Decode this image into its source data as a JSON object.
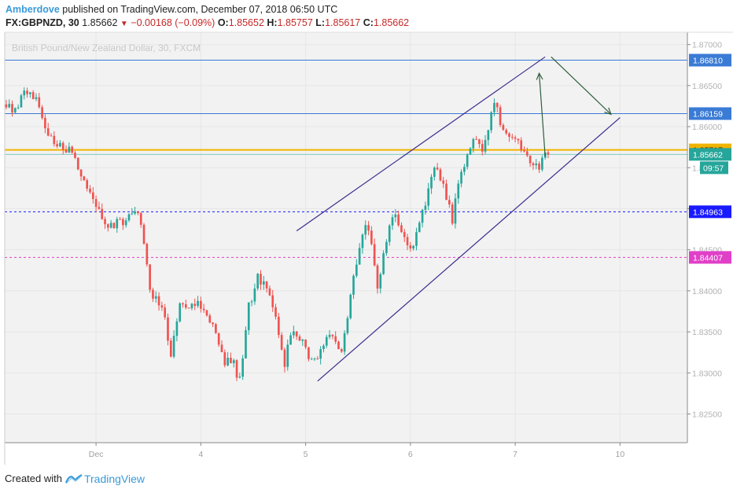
{
  "header": {
    "author": "Amberdove",
    "published_text": "published on TradingView.com, December 07, 2018 06:50 UTC"
  },
  "symbol_bar": {
    "symbol": "FX:GBPNZD, 30",
    "last": "1.85662",
    "change": "−0.00168 (−0.09%)",
    "open_label": "O:",
    "open": "1.85652",
    "high_label": "H:",
    "high": "1.85757",
    "low_label": "L:",
    "low": "1.85617",
    "close_label": "C:",
    "close": "1.85662"
  },
  "footer": {
    "created_with": "Created with",
    "brand": "TradingView"
  },
  "colors": {
    "up": "#26a69a",
    "down": "#ef5350",
    "plot_bg": "#f2f2f2",
    "channel": "#3d2c8d",
    "arrow": "#2e5e3e",
    "blue_level": "#3a7bd5",
    "gold_level": "#f0b400",
    "navy_level": "#1a1aff",
    "magenta_level": "#e040c8"
  },
  "chart_data": {
    "type": "candlestick",
    "watermark": "British Pound/New Zealand Dollar, 30, FXCM",
    "ylim": [
      1.8215,
      1.8715
    ],
    "y_ticks": [
      "1.87000",
      "1.86500",
      "1.86000",
      "1.85500",
      "1.85000",
      "1.84500",
      "1.84000",
      "1.83500",
      "1.83000",
      "1.82500"
    ],
    "x_ticks": [
      {
        "label": "Dec",
        "bar": 30
      },
      {
        "label": "4",
        "bar": 65
      },
      {
        "label": "5",
        "bar": 100
      },
      {
        "label": "6",
        "bar": 135
      },
      {
        "label": "7",
        "bar": 170
      },
      {
        "label": "10",
        "bar": 205
      }
    ],
    "bars_total": 228,
    "countdown": "09:57",
    "price_levels": [
      {
        "label": "1.86810",
        "value": 1.8681,
        "style": "solid",
        "color": "#3a7bd5"
      },
      {
        "label": "1.86159",
        "value": 1.86159,
        "style": "solid",
        "color": "#3a7bd5"
      },
      {
        "label": "1.85717",
        "value": 1.85717,
        "style": "solid-thick",
        "color": "#f0b400"
      },
      {
        "label": "1.85662",
        "value": 1.85662,
        "style": "thin",
        "color": "#26a69a"
      },
      {
        "label": "1.84963",
        "value": 1.84963,
        "style": "dashed",
        "color": "#1a1aff"
      },
      {
        "label": "1.84407",
        "value": 1.84407,
        "style": "dashed",
        "color": "#e040c8"
      }
    ],
    "channel": {
      "upper": [
        {
          "bar": 97,
          "price": 1.8473
        },
        {
          "bar": 180,
          "price": 1.8685
        }
      ],
      "lower": [
        {
          "bar": 104,
          "price": 1.829
        },
        {
          "bar": 205,
          "price": 1.8611
        }
      ]
    },
    "arrows": [
      {
        "from": {
          "bar": 180,
          "price": 1.8564
        },
        "to": {
          "bar": 178,
          "price": 1.8665
        }
      },
      {
        "from": {
          "bar": 182,
          "price": 1.8685
        },
        "to": {
          "bar": 202,
          "price": 1.8615
        }
      }
    ],
    "path_keypoints": [
      [
        0,
        1.8627
      ],
      [
        4,
        1.8618
      ],
      [
        7,
        1.8645
      ],
      [
        11,
        1.863
      ],
      [
        14,
        1.8595
      ],
      [
        18,
        1.858
      ],
      [
        22,
        1.857
      ],
      [
        26,
        1.8545
      ],
      [
        30,
        1.8515
      ],
      [
        33,
        1.849
      ],
      [
        36,
        1.8478
      ],
      [
        40,
        1.8485
      ],
      [
        44,
        1.8502
      ],
      [
        46,
        1.848
      ],
      [
        49,
        1.84
      ],
      [
        53,
        1.8382
      ],
      [
        56,
        1.8325
      ],
      [
        59,
        1.838
      ],
      [
        62,
        1.8382
      ],
      [
        65,
        1.8385
      ],
      [
        68,
        1.8375
      ],
      [
        71,
        1.8345
      ],
      [
        74,
        1.8315
      ],
      [
        77,
        1.831
      ],
      [
        79,
        1.829
      ],
      [
        82,
        1.838
      ],
      [
        85,
        1.8415
      ],
      [
        88,
        1.8405
      ],
      [
        90,
        1.838
      ],
      [
        92,
        1.8345
      ],
      [
        94,
        1.831
      ],
      [
        96,
        1.835
      ],
      [
        99,
        1.8345
      ],
      [
        102,
        1.832
      ],
      [
        105,
        1.8312
      ],
      [
        108,
        1.8345
      ],
      [
        111,
        1.834
      ],
      [
        113,
        1.8322
      ],
      [
        116,
        1.8395
      ],
      [
        119,
        1.845
      ],
      [
        121,
        1.848
      ],
      [
        123,
        1.846
      ],
      [
        125,
        1.84
      ],
      [
        127,
        1.8445
      ],
      [
        130,
        1.8495
      ],
      [
        133,
        1.8475
      ],
      [
        136,
        1.845
      ],
      [
        139,
        1.848
      ],
      [
        142,
        1.852
      ],
      [
        144,
        1.8555
      ],
      [
        146,
        1.8535
      ],
      [
        148,
        1.8515
      ],
      [
        150,
        1.8485
      ],
      [
        152,
        1.853
      ],
      [
        154,
        1.8555
      ],
      [
        157,
        1.859
      ],
      [
        160,
        1.857
      ],
      [
        162,
        1.86
      ],
      [
        164,
        1.8632
      ],
      [
        166,
        1.8605
      ],
      [
        169,
        1.859
      ],
      [
        172,
        1.858
      ],
      [
        175,
        1.857
      ],
      [
        177,
        1.855
      ],
      [
        179,
        1.8552
      ],
      [
        181,
        1.8568
      ]
    ]
  }
}
